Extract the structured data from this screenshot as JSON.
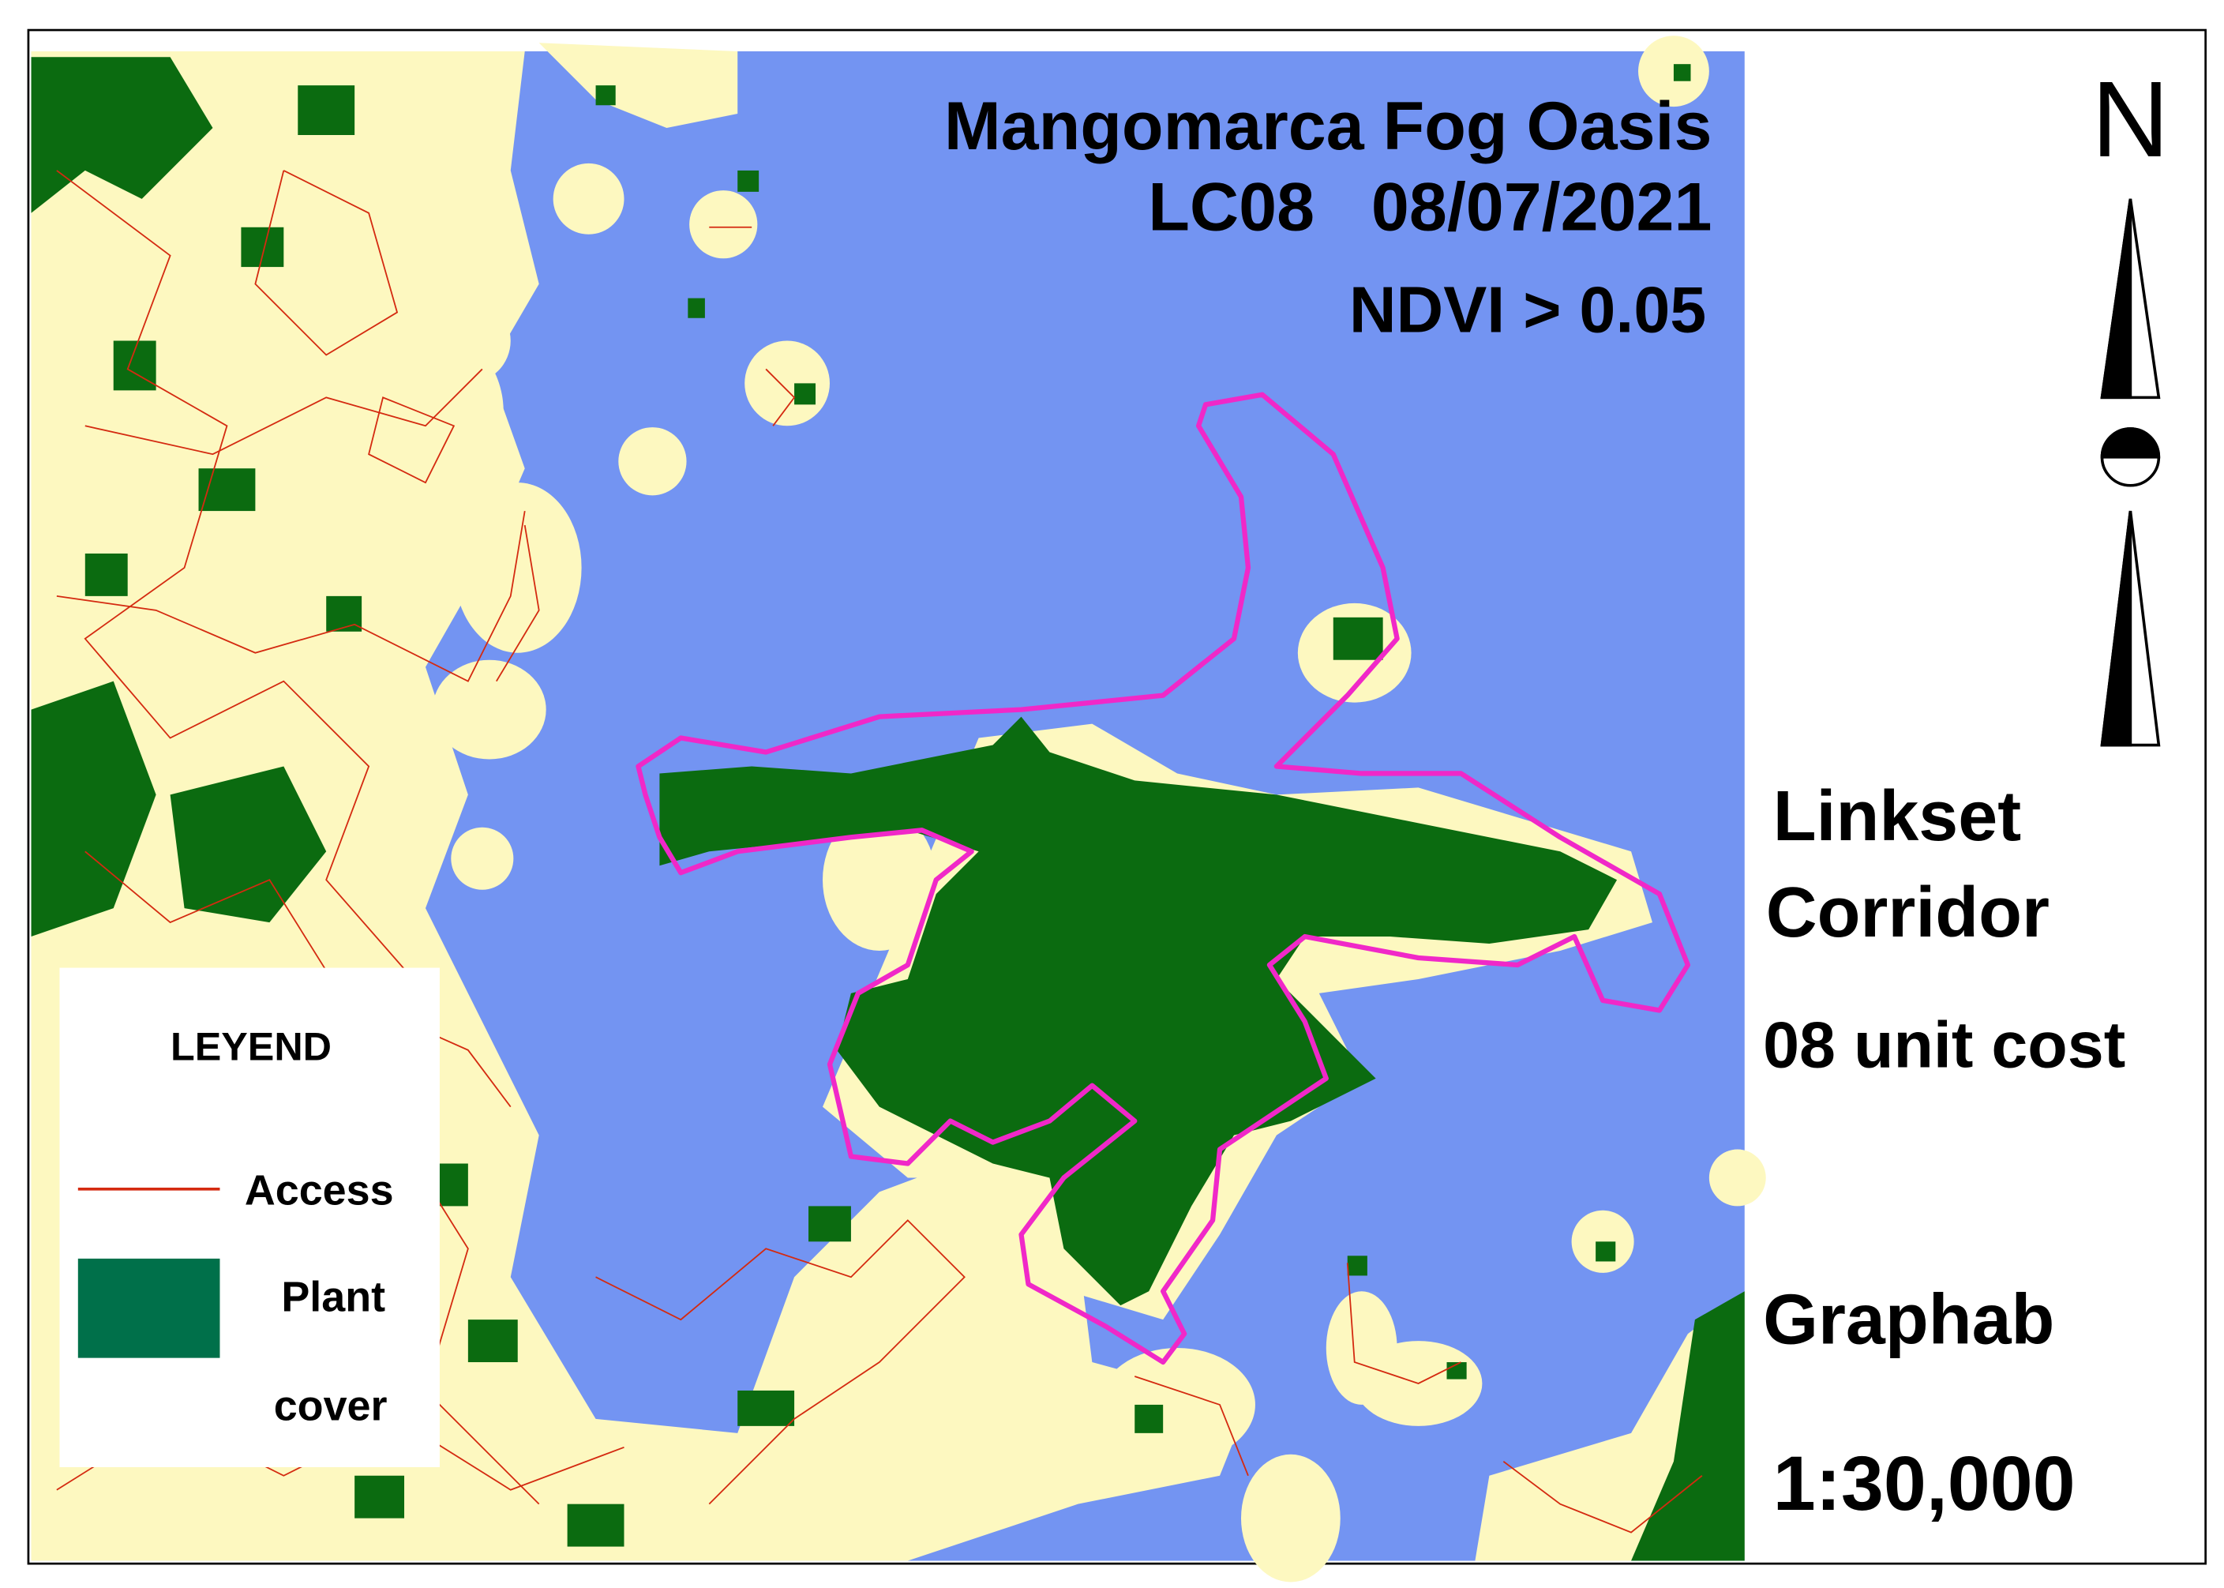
{
  "map": {
    "title": "Mangomarca Fog Oasis",
    "sensor_date": "LC08   08/07/2021",
    "threshold": "NDVI > 0.05",
    "north": "N",
    "side_labels": [
      "Linkset",
      "Corridor",
      "08 unit cost",
      "Graphab",
      "1:30,000"
    ],
    "legend": {
      "title": "LEYEND",
      "access": "Access",
      "plant_cover": [
        "Plant",
        "cover"
      ]
    }
  }
}
